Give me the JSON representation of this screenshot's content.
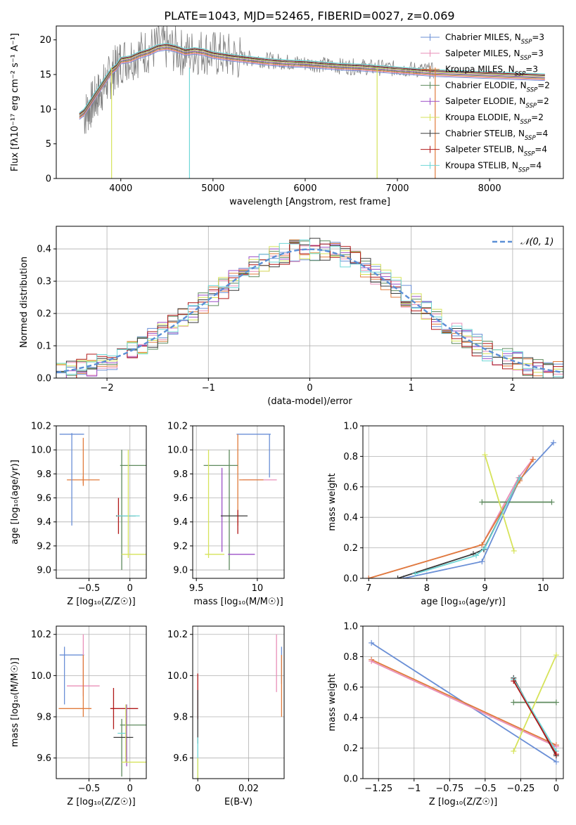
{
  "figure": {
    "title": "PLATE=1043, MJD=52465, FIBERID=0027, z=0.069"
  },
  "models": [
    {
      "name": "Chabrier MILES",
      "nssp": "3",
      "color": "#6a8fd6"
    },
    {
      "name": "Salpeter MILES",
      "nssp": "3",
      "color": "#e98fb8"
    },
    {
      "name": "Kroupa MILES",
      "nssp": "3",
      "color": "#e07b3c"
    },
    {
      "name": "Chabrier ELODIE",
      "nssp": "2",
      "color": "#5e8a5e"
    },
    {
      "name": "Salpeter ELODIE",
      "nssp": "2",
      "color": "#9b4fc7"
    },
    {
      "name": "Kroupa ELODIE",
      "nssp": "2",
      "color": "#d6e35a"
    },
    {
      "name": "Chabrier STELIB",
      "nssp": "4",
      "color": "#3a3a3a"
    },
    {
      "name": "Salpeter STELIB",
      "nssp": "4",
      "color": "#b01818"
    },
    {
      "name": "Kroupa STELIB",
      "nssp": "4",
      "color": "#6fd6d6"
    }
  ],
  "chart_data": [
    {
      "id": "spectrum",
      "type": "line",
      "title": "PLATE=1043, MJD=52465, FIBERID=0027, z=0.069",
      "xlabel": "wavelength [Angstrom, rest frame]",
      "ylabel": "Flux [fλ10⁻¹⁷ erg cm⁻² s⁻¹ A⁻¹]",
      "xlim": [
        3300,
        8800
      ],
      "ylim": [
        0,
        22
      ],
      "xticks": [
        4000,
        5000,
        6000,
        7000,
        8000
      ],
      "yticks": [
        0,
        5,
        10,
        15,
        20
      ],
      "grid": false,
      "legend": "top-right",
      "data_series": {
        "name": "",
        "color": "#808080",
        "x": [
          3600,
          3650,
          3700,
          3750,
          3800,
          3850,
          3900,
          3950,
          4000,
          4100,
          4200,
          4300,
          4400,
          4500,
          4600,
          4700,
          4800,
          4900,
          5000,
          5100,
          5200,
          5300,
          5400,
          5500,
          5600,
          5700,
          5800,
          5900,
          6000,
          6100,
          6200,
          6300,
          6400,
          6500,
          6600,
          6700,
          6800,
          6900,
          7000,
          7100,
          7200,
          7300,
          7400
        ],
        "y": [
          9,
          10,
          11,
          12,
          13,
          14,
          15,
          16,
          17,
          17.5,
          18,
          18.5,
          19,
          19,
          18.5,
          18,
          18.2,
          18.4,
          18,
          17.8,
          17.6,
          17.4,
          17.3,
          17.2,
          17,
          16.9,
          16.8,
          16.7,
          16.6,
          16.5,
          16.4,
          16.3,
          16.2,
          16.1,
          16.2,
          16,
          16,
          15.9,
          15.8,
          15.8,
          15.7,
          15.6,
          15.5
        ]
      },
      "model_series": {
        "name": "",
        "color": "#6fd6d6",
        "x": [
          3550,
          3600,
          3650,
          3700,
          3750,
          3800,
          3850,
          3900,
          3950,
          4000,
          4100,
          4200,
          4300,
          4400,
          4500,
          4600,
          4700,
          4800,
          4900,
          5000,
          5200,
          5400,
          5600,
          5800,
          6000,
          6200,
          6400,
          6600,
          6800,
          7000,
          7200,
          7400,
          7600,
          7800,
          8000,
          8200,
          8400,
          8600
        ],
        "y": [
          9,
          9.5,
          10.5,
          11.5,
          12.5,
          13.5,
          14.5,
          15.5,
          16,
          17,
          17.2,
          17.8,
          18.2,
          18.8,
          19,
          18.7,
          18.2,
          18.4,
          18.2,
          17.8,
          17.4,
          17.1,
          16.8,
          16.6,
          16.5,
          16.3,
          16.1,
          16,
          15.8,
          15.6,
          15.4,
          15.2,
          15.1,
          15,
          14.9,
          14.8,
          14.7,
          14.6
        ]
      }
    },
    {
      "id": "residuals",
      "type": "line",
      "title": "",
      "xlabel": "(data-model)/error",
      "ylabel": "Normed distribution",
      "xlim": [
        -2.5,
        2.5
      ],
      "ylim": [
        0,
        0.47
      ],
      "xticks": [
        -2,
        -1,
        0,
        1,
        2
      ],
      "yticks": [
        0.0,
        0.1,
        0.2,
        0.3,
        0.4
      ],
      "grid": true,
      "legend": "top-right",
      "gaussian_label": "𝒩(0, 1)",
      "gaussian_color": "#5b8fd6"
    },
    {
      "id": "age-vs-Z",
      "type": "scatter",
      "xlabel": "Z [log₁₀(Z/Z☉)]",
      "ylabel": "age  [log₁₀(age/yr)]",
      "xlim": [
        -0.9,
        0.2
      ],
      "ylim": [
        8.93,
        10.2
      ],
      "xticks": [
        -0.5,
        0.0
      ],
      "yticks": [
        9.0,
        9.2,
        9.4,
        9.6,
        9.8,
        10.0,
        10.2
      ],
      "grid": true,
      "points": [
        {
          "model": 0,
          "x": -0.71,
          "y": 10.13,
          "xerr": 0.15,
          "yerr": 0.01
        },
        {
          "model": 2,
          "x": -0.57,
          "y": 9.75,
          "xerr": 0.2,
          "yerr": 0.03
        },
        {
          "model": 2,
          "x": -0.57,
          "y": 9.9,
          "xerr": 0.0,
          "yerr": 0.2
        },
        {
          "model": 0,
          "x": -0.71,
          "y": 9.75,
          "xerr": 0.0,
          "yerr": 0.38
        },
        {
          "model": 3,
          "x": -0.1,
          "y": 9.5,
          "xerr": 0.0,
          "yerr": 0.5
        },
        {
          "model": 3,
          "x": 0.05,
          "y": 9.87,
          "xerr": 0.17,
          "yerr": 0.0
        },
        {
          "model": 7,
          "x": -0.14,
          "y": 9.45,
          "xerr": 0.0,
          "yerr": 0.15
        },
        {
          "model": 6,
          "x": -0.05,
          "y": 9.45,
          "xerr": 0.12,
          "yerr": 0.0
        },
        {
          "model": 8,
          "x": -0.02,
          "y": 9.45,
          "xerr": 0.14,
          "yerr": 0.0
        },
        {
          "model": 5,
          "x": -0.02,
          "y": 9.55,
          "xerr": 0.0,
          "yerr": 0.45
        },
        {
          "model": 5,
          "x": 0.05,
          "y": 9.13,
          "xerr": 0.15,
          "yerr": 0.0
        }
      ]
    },
    {
      "id": "age-vs-mass",
      "type": "scatter",
      "xlabel": "mass [log₁₀(M/M☉)]",
      "ylabel": "",
      "xlim": [
        9.47,
        10.22
      ],
      "ylim": [
        8.93,
        10.2
      ],
      "xticks": [
        9.5,
        10.0
      ],
      "yticks": [
        9.0,
        9.2,
        9.4,
        9.6,
        9.8,
        10.0,
        10.2
      ],
      "grid": true,
      "points": [
        {
          "model": 0,
          "x": 9.97,
          "y": 10.13,
          "xerr": 0.14,
          "yerr": 0.0
        },
        {
          "model": 0,
          "x": 10.1,
          "y": 9.95,
          "xerr": 0.0,
          "yerr": 0.18
        },
        {
          "model": 1,
          "x": 10.02,
          "y": 9.75,
          "xerr": 0.14,
          "yerr": 0.0
        },
        {
          "model": 2,
          "x": 9.84,
          "y": 9.75,
          "xerr": 0.0,
          "yerr": 0.38
        },
        {
          "model": 2,
          "x": 9.95,
          "y": 9.75,
          "xerr": 0.1,
          "yerr": 0.0
        },
        {
          "model": 3,
          "x": 9.7,
          "y": 9.87,
          "xerr": 0.14,
          "yerr": 0.0
        },
        {
          "model": 3,
          "x": 9.77,
          "y": 9.5,
          "xerr": 0.0,
          "yerr": 0.5
        },
        {
          "model": 4,
          "x": 9.71,
          "y": 9.5,
          "xerr": 0.0,
          "yerr": 0.35
        },
        {
          "model": 4,
          "x": 9.87,
          "y": 9.13,
          "xerr": 0.11,
          "yerr": 0.0
        },
        {
          "model": 5,
          "x": 9.6,
          "y": 9.55,
          "xerr": 0.0,
          "yerr": 0.45
        },
        {
          "model": 5,
          "x": 9.65,
          "y": 9.13,
          "xerr": 0.08,
          "yerr": 0.0
        },
        {
          "model": 6,
          "x": 9.81,
          "y": 9.45,
          "xerr": 0.11,
          "yerr": 0.0
        },
        {
          "model": 7,
          "x": 9.84,
          "y": 9.4,
          "xerr": 0.0,
          "yerr": 0.1
        }
      ]
    },
    {
      "id": "weight-vs-age",
      "type": "line",
      "xlabel": "age  [log₁₀(age/yr)]",
      "ylabel": "mass weight",
      "xlim": [
        6.9,
        10.35
      ],
      "ylim": [
        0,
        1.0
      ],
      "xticks": [
        7,
        8,
        9,
        10
      ],
      "yticks": [
        0.0,
        0.2,
        0.4,
        0.6,
        0.8,
        1.0
      ],
      "grid": true,
      "series": [
        {
          "model": 0,
          "x": [
            7.6,
            8.95,
            9.6,
            10.18
          ],
          "y": [
            0.0,
            0.11,
            0.65,
            0.89
          ]
        },
        {
          "model": 1,
          "x": [
            7.0,
            8.95,
            9.58,
            9.82
          ],
          "y": [
            0.0,
            0.22,
            0.66,
            0.78
          ]
        },
        {
          "model": 2,
          "x": [
            7.0,
            8.95,
            9.6,
            9.83
          ],
          "y": [
            0.0,
            0.22,
            0.64,
            0.78
          ]
        },
        {
          "model": 3,
          "x": [
            8.95,
            10.15
          ],
          "y": [
            0.5,
            0.5
          ]
        },
        {
          "model": 5,
          "x": [
            9.0,
            9.5
          ],
          "y": [
            0.81,
            0.18
          ]
        },
        {
          "model": 6,
          "x": [
            7.5,
            8.8,
            8.98,
            9.6
          ],
          "y": [
            0.0,
            0.16,
            0.19,
            0.66
          ]
        },
        {
          "model": 8,
          "x": [
            7.8,
            8.85,
            9.0,
            9.6
          ],
          "y": [
            0.03,
            0.15,
            0.2,
            0.66
          ]
        }
      ]
    },
    {
      "id": "mass-vs-Z",
      "type": "scatter",
      "xlabel": "Z [log₁₀(Z/Z☉)]",
      "ylabel": "mass [log₁₀(M/M☉)]",
      "xlim": [
        -0.9,
        0.2
      ],
      "ylim": [
        9.5,
        10.24
      ],
      "xticks": [
        -0.5,
        0.0
      ],
      "yticks": [
        9.6,
        9.8,
        10.0,
        10.2
      ],
      "grid": true,
      "points": [
        {
          "model": 0,
          "x": -0.71,
          "y": 10.1,
          "xerr": 0.15,
          "yerr": 0.0
        },
        {
          "model": 0,
          "x": -0.8,
          "y": 10.0,
          "xerr": 0.0,
          "yerr": 0.14
        },
        {
          "model": 1,
          "x": -0.57,
          "y": 9.95,
          "xerr": 0.2,
          "yerr": 0.0
        },
        {
          "model": 1,
          "x": -0.57,
          "y": 10.05,
          "xerr": 0.0,
          "yerr": 0.15
        },
        {
          "model": 2,
          "x": -0.67,
          "y": 9.84,
          "xerr": 0.2,
          "yerr": 0.0
        },
        {
          "model": 2,
          "x": -0.57,
          "y": 9.95,
          "xerr": 0.0,
          "yerr": 0.15
        },
        {
          "model": 7,
          "x": -0.2,
          "y": 9.84,
          "xerr": 0.0,
          "yerr": 0.1
        },
        {
          "model": 7,
          "x": -0.07,
          "y": 9.84,
          "xerr": 0.17,
          "yerr": 0.0
        },
        {
          "model": 4,
          "x": -0.04,
          "y": 9.71,
          "xerr": 0.0,
          "yerr": 0.15
        },
        {
          "model": 3,
          "x": 0.05,
          "y": 9.76,
          "xerr": 0.17,
          "yerr": 0.0
        },
        {
          "model": 3,
          "x": -0.1,
          "y": 9.65,
          "xerr": 0.0,
          "yerr": 0.14
        },
        {
          "model": 6,
          "x": -0.08,
          "y": 9.7,
          "xerr": 0.12,
          "yerr": 0.0
        },
        {
          "model": 8,
          "x": -0.1,
          "y": 9.72,
          "xerr": 0.05,
          "yerr": 0.0
        },
        {
          "model": 5,
          "x": 0.05,
          "y": 9.58,
          "xerr": 0.15,
          "yerr": 0.0
        },
        {
          "model": 5,
          "x": -0.05,
          "y": 9.72,
          "xerr": 0.0,
          "yerr": 0.14
        }
      ]
    },
    {
      "id": "mass-vs-EBV",
      "type": "scatter",
      "xlabel": "E(B-V)",
      "ylabel": "",
      "xlim": [
        -0.002,
        0.034
      ],
      "ylim": [
        9.5,
        10.24
      ],
      "xticks": [
        0.0,
        0.02
      ],
      "yticks": [
        9.6,
        9.8,
        10.0,
        10.2
      ],
      "grid": true,
      "points": [
        {
          "model": 7,
          "x": 0.0,
          "y": 9.9,
          "xerr": 0.0,
          "yerr": 0.11
        },
        {
          "model": 6,
          "x": 0.0,
          "y": 9.8,
          "xerr": 0.0,
          "yerr": 0.13
        },
        {
          "model": 8,
          "x": 0.0,
          "y": 9.6,
          "xerr": 0.0,
          "yerr": 0.1
        },
        {
          "model": 5,
          "x": 0.0,
          "y": 9.55,
          "xerr": 0.0,
          "yerr": 0.05
        },
        {
          "model": 1,
          "x": 0.031,
          "y": 10.06,
          "xerr": 0.0,
          "yerr": 0.14
        },
        {
          "model": 0,
          "x": 0.033,
          "y": 10.05,
          "xerr": 0.0,
          "yerr": 0.09
        },
        {
          "model": 2,
          "x": 0.033,
          "y": 9.95,
          "xerr": 0.0,
          "yerr": 0.15
        }
      ]
    },
    {
      "id": "weight-vs-Z",
      "type": "line",
      "xlabel": "Z [log₁₀(Z/Z☉)]",
      "ylabel": "mass weight",
      "xlim": [
        -1.36,
        0.05
      ],
      "ylim": [
        0,
        1.0
      ],
      "xticks": [
        -1.25,
        -1.0,
        -0.75,
        -0.5,
        -0.25,
        0.0
      ],
      "yticks": [
        0.0,
        0.2,
        0.4,
        0.6,
        0.8,
        1.0
      ],
      "grid": true,
      "series": [
        {
          "model": 0,
          "x": [
            -1.3,
            0.0
          ],
          "y": [
            0.89,
            0.11
          ]
        },
        {
          "model": 2,
          "x": [
            -1.3,
            0.0
          ],
          "y": [
            0.78,
            0.22
          ]
        },
        {
          "model": 1,
          "x": [
            -1.3,
            0.0
          ],
          "y": [
            0.77,
            0.21
          ]
        },
        {
          "model": 3,
          "x": [
            -0.3,
            0.0
          ],
          "y": [
            0.5,
            0.5
          ]
        },
        {
          "model": 5,
          "x": [
            -0.3,
            0.0
          ],
          "y": [
            0.18,
            0.81
          ]
        },
        {
          "model": 6,
          "x": [
            -0.3,
            0.0
          ],
          "y": [
            0.66,
            0.15
          ]
        },
        {
          "model": 8,
          "x": [
            -0.3,
            0.0
          ],
          "y": [
            0.65,
            0.18
          ]
        },
        {
          "model": 7,
          "x": [
            -0.3,
            0.0
          ],
          "y": [
            0.64,
            0.16
          ]
        }
      ]
    }
  ]
}
